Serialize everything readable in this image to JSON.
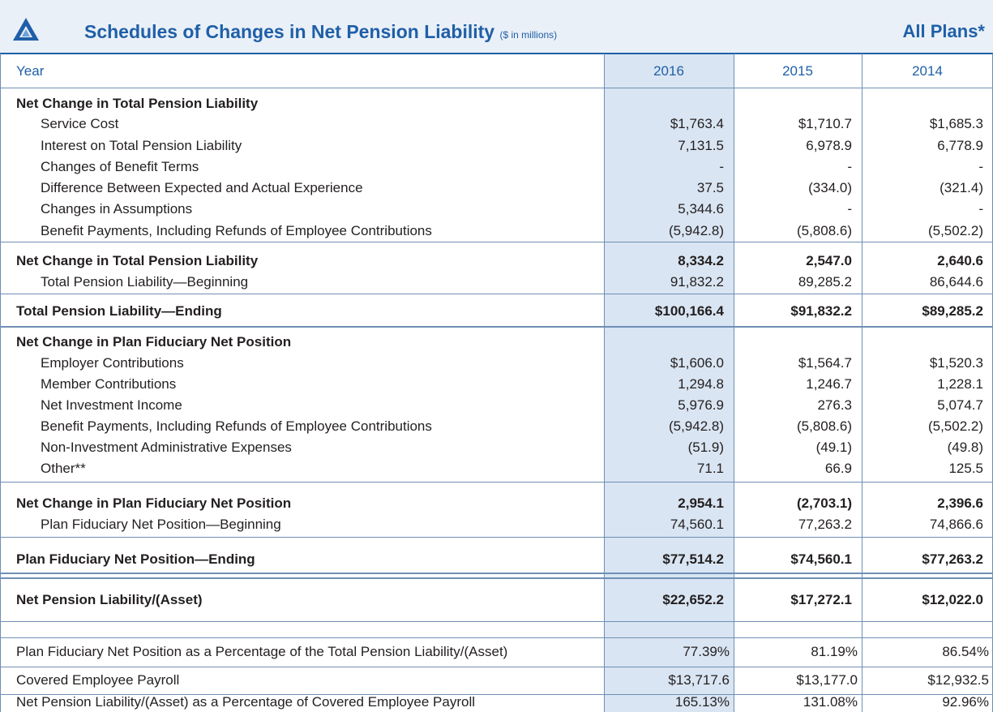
{
  "header": {
    "title": "Schedules of Changes in Net Pension Liability",
    "subtitle": "($ in millions)",
    "plans": "All Plans*"
  },
  "table": {
    "columns": [
      "Year",
      "2016",
      "2015",
      "2014"
    ],
    "rows": [
      [
        "Net Change in Total Pension Liability"
      ],
      [
        "Service Cost",
        "$1,763.4",
        "$1,710.7",
        "$1,685.3"
      ],
      [
        "Interest on Total Pension Liability",
        "7,131.5",
        "6,978.9",
        "6,778.9"
      ],
      [
        "Changes of Benefit Terms",
        "-",
        "-",
        "-"
      ],
      [
        "Difference Between Expected and Actual Experience",
        "37.5",
        "(334.0)",
        "(321.4)"
      ],
      [
        "Changes in Assumptions",
        "5,344.6",
        "-",
        "-"
      ],
      [
        "Benefit Payments, Including Refunds of Employee Contributions",
        "(5,942.8)",
        "(5,808.6)",
        "(5,502.2)"
      ],
      [
        "Net Change in Total Pension Liability",
        "8,334.2",
        "2,547.0",
        "2,640.6"
      ],
      [
        "Total Pension Liability—Beginning",
        "91,832.2",
        "89,285.2",
        "86,644.6"
      ],
      [
        "Total Pension Liability—Ending",
        "$100,166.4",
        "$91,832.2",
        "$89,285.2"
      ],
      [
        "Net Change in Plan Fiduciary Net Position"
      ],
      [
        "Employer Contributions",
        "$1,606.0",
        "$1,564.7",
        "$1,520.3"
      ],
      [
        "Member Contributions",
        "1,294.8",
        "1,246.7",
        "1,228.1"
      ],
      [
        "Net Investment Income",
        "5,976.9",
        "276.3",
        "5,074.7"
      ],
      [
        "Benefit Payments, Including Refunds of Employee Contributions",
        "(5,942.8)",
        "(5,808.6)",
        "(5,502.2)"
      ],
      [
        "Non-Investment Administrative Expenses",
        "(51.9)",
        "(49.1)",
        "(49.8)"
      ],
      [
        "Other**",
        "71.1",
        "66.9",
        "125.5"
      ],
      [
        "Net Change in Plan Fiduciary Net Position",
        "2,954.1",
        "(2,703.1)",
        "2,396.6"
      ],
      [
        "Plan Fiduciary Net Position—Beginning",
        "74,560.1",
        "77,263.2",
        "74,866.6"
      ],
      [
        "Plan Fiduciary Net Position—Ending",
        "$77,514.2",
        "$74,560.1",
        "$77,263.2"
      ],
      [
        "Net Pension Liability/(Asset)",
        "$22,652.2",
        "$17,272.1",
        "$12,022.0"
      ],
      [
        "Plan Fiduciary Net Position as a Percentage of the Total Pension Liability/(Asset)",
        "77.39%",
        "81.19%",
        "86.54%"
      ],
      [
        "Covered Employee Payroll",
        "$13,717.6",
        "$13,177.0",
        "$12,932.5"
      ],
      [
        "Net Pension Liability/(Asset) as a Percentage of Covered Employee Payroll",
        "165.13%",
        "131.08%",
        "92.96%"
      ]
    ]
  }
}
